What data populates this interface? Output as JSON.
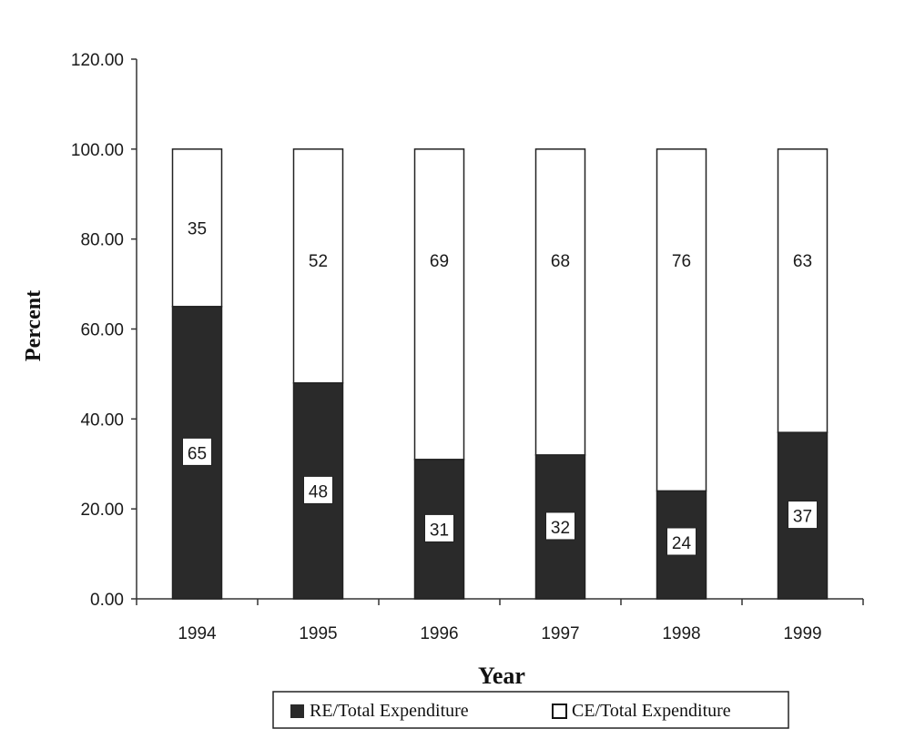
{
  "chart_data": {
    "type": "bar",
    "stacked": true,
    "categories": [
      "1994",
      "1995",
      "1996",
      "1997",
      "1998",
      "1999"
    ],
    "series": [
      {
        "name": "RE/Total Expenditure",
        "values": [
          65,
          48,
          31,
          32,
          24,
          37
        ],
        "color": "#2a2a2a"
      },
      {
        "name": "CE/Total Expenditure",
        "values": [
          35,
          52,
          69,
          68,
          76,
          63
        ],
        "color": "#ffffff"
      }
    ],
    "xlabel": "Year",
    "ylabel": "Percent",
    "ylim": [
      0,
      120
    ],
    "yticks": [
      "0.00",
      "20.00",
      "40.00",
      "60.00",
      "80.00",
      "100.00",
      "120.00"
    ],
    "grid": false,
    "legend_position": "bottom"
  }
}
